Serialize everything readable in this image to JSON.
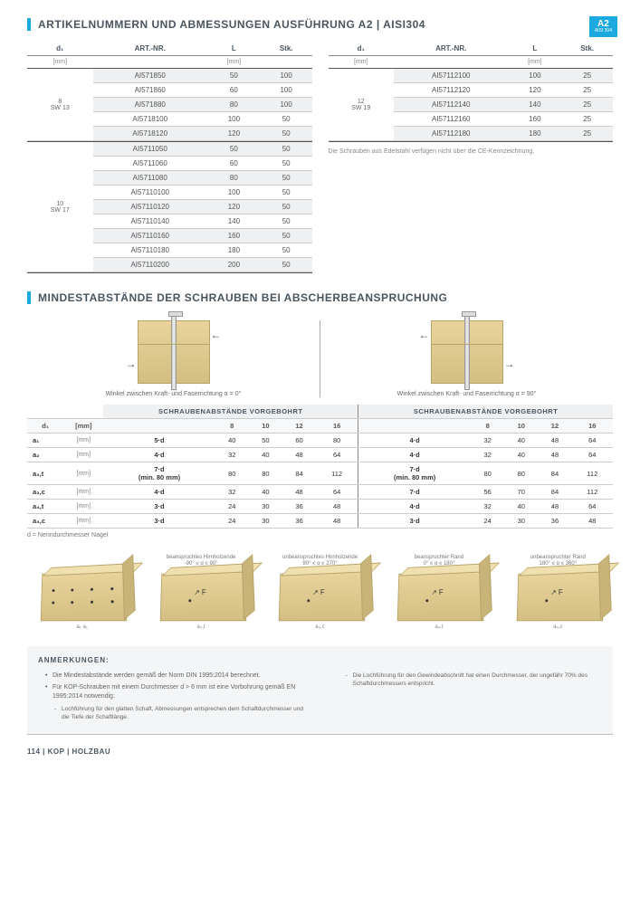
{
  "section1": {
    "title": "ARTIKELNUMMERN UND ABMESSUNGEN AUSFÜHRUNG A2 | AISI304",
    "badge": {
      "main": "A2",
      "sub": "AISI 304"
    }
  },
  "tableHeaders": {
    "d1": "d₁",
    "art": "ART.-NR.",
    "L": "L",
    "stk": "Stk.",
    "mm": "[mm]"
  },
  "leftTable": {
    "groups": [
      {
        "label": "8\nSW 13",
        "rows": [
          {
            "art": "AI571850",
            "L": "50",
            "stk": "100"
          },
          {
            "art": "AI571860",
            "L": "60",
            "stk": "100"
          },
          {
            "art": "AI571880",
            "L": "80",
            "stk": "100"
          },
          {
            "art": "AI5718100",
            "L": "100",
            "stk": "50"
          },
          {
            "art": "AI5718120",
            "L": "120",
            "stk": "50"
          }
        ]
      },
      {
        "label": "10\nSW 17",
        "rows": [
          {
            "art": "AI5711050",
            "L": "50",
            "stk": "50"
          },
          {
            "art": "AI5711060",
            "L": "60",
            "stk": "50"
          },
          {
            "art": "AI5711080",
            "L": "80",
            "stk": "50"
          },
          {
            "art": "AI57110100",
            "L": "100",
            "stk": "50"
          },
          {
            "art": "AI57110120",
            "L": "120",
            "stk": "50"
          },
          {
            "art": "AI57110140",
            "L": "140",
            "stk": "50"
          },
          {
            "art": "AI57110160",
            "L": "160",
            "stk": "50"
          },
          {
            "art": "AI57110180",
            "L": "180",
            "stk": "50"
          },
          {
            "art": "AI57110200",
            "L": "200",
            "stk": "50"
          }
        ]
      }
    ]
  },
  "rightTable": {
    "groups": [
      {
        "label": "12\nSW 19",
        "rows": [
          {
            "art": "AI57112100",
            "L": "100",
            "stk": "25"
          },
          {
            "art": "AI57112120",
            "L": "120",
            "stk": "25"
          },
          {
            "art": "AI57112140",
            "L": "140",
            "stk": "25"
          },
          {
            "art": "AI57112160",
            "L": "160",
            "stk": "25"
          },
          {
            "art": "AI57112180",
            "L": "180",
            "stk": "25"
          }
        ]
      }
    ],
    "note": "Die Schrauben aus Edelstahl verfügen nicht über die CE-Kenn­zeichnung."
  },
  "section2": {
    "title": "MINDESTABSTÄNDE DER SCHRAUBEN BEI ABSCHERBEANSPRUCHUNG"
  },
  "diag": {
    "left": "Winkel zwischen Kraft- und Faserrichtung α = 0°",
    "right": "Winkel zwischen Kraft- und Faserrichtung α = 90°"
  },
  "distTable": {
    "hdr": "SCHRAUBENABSTÄNDE VORGEBOHRT",
    "d1": "d₁",
    "mm": "[mm]",
    "cols_left": [
      "8",
      "10",
      "12",
      "16"
    ],
    "cols_right": [
      "8",
      "10",
      "12",
      "16"
    ],
    "rows": [
      {
        "k": "a₁",
        "f1": "5·d",
        "v1": [
          "40",
          "50",
          "60",
          "80"
        ],
        "f2": "4·d",
        "v2": [
          "32",
          "40",
          "48",
          "64"
        ]
      },
      {
        "k": "a₂",
        "f1": "4·d",
        "v1": [
          "32",
          "40",
          "48",
          "64"
        ],
        "f2": "4·d",
        "v2": [
          "32",
          "40",
          "48",
          "64"
        ]
      },
      {
        "k": "a₃,t",
        "f1": "7·d\n(min. 80 mm)",
        "v1": [
          "80",
          "80",
          "84",
          "112"
        ],
        "f2": "7·d\n(min. 80 mm)",
        "v2": [
          "80",
          "80",
          "84",
          "112"
        ]
      },
      {
        "k": "a₃,c",
        "f1": "4·d",
        "v1": [
          "32",
          "40",
          "48",
          "64"
        ],
        "f2": "7·d",
        "v2": [
          "56",
          "70",
          "84",
          "112"
        ]
      },
      {
        "k": "a₄,t",
        "f1": "3·d",
        "v1": [
          "24",
          "30",
          "36",
          "48"
        ],
        "f2": "4·d",
        "v2": [
          "32",
          "40",
          "48",
          "64"
        ]
      },
      {
        "k": "a₄,c",
        "f1": "3·d",
        "v1": [
          "24",
          "30",
          "36",
          "48"
        ],
        "f2": "3·d",
        "v2": [
          "24",
          "30",
          "36",
          "48"
        ]
      }
    ],
    "footnote": "d = Nenndurchmesser Nagel"
  },
  "smallDiags": [
    {
      "cap": "",
      "sub": "a₁   a₁"
    },
    {
      "cap": "beanspruchtes Hirnholzende\n-90° ≤ α ≤ 90°",
      "sub": "a₃,t"
    },
    {
      "cap": "unbeanspruchtes Hirnholzende\n90° ≤ α ≤ 270°",
      "sub": "a₃,c"
    },
    {
      "cap": "beanspruchter Rand\n0° ≤ α ≤ 180°",
      "sub": "a₄,t"
    },
    {
      "cap": "unbeanspruchter Rand\n180° ≤ α ≤ 360°",
      "sub": "a₄,c"
    }
  ],
  "notes": {
    "title": "ANMERKUNGEN:",
    "left": [
      "Die Mindestabstände werden gemäß der Norm DIN 1995:2014 berechnet.",
      "Für KOP-Schrauben mit einem Durchmesser d > 6 mm ist eine Vorbohrung gemäß EN 1995:2014 notwendig:"
    ],
    "leftSub": [
      "Lochführung für den glatten Schaft, Abmessungen entsprechen dem Schaftdurchmesser und die Tiefe der Schaftlänge."
    ],
    "right": [
      "Die Lochführung für den Gewindeabschnitt hat einen Durchmesser, der ungefähr 70% des Schaftdurchmessers entspricht."
    ]
  },
  "footer": {
    "page": "114",
    "sep": "|",
    "brand": "KOP",
    "sep2": "|",
    "cat": "HOLZBAU"
  }
}
